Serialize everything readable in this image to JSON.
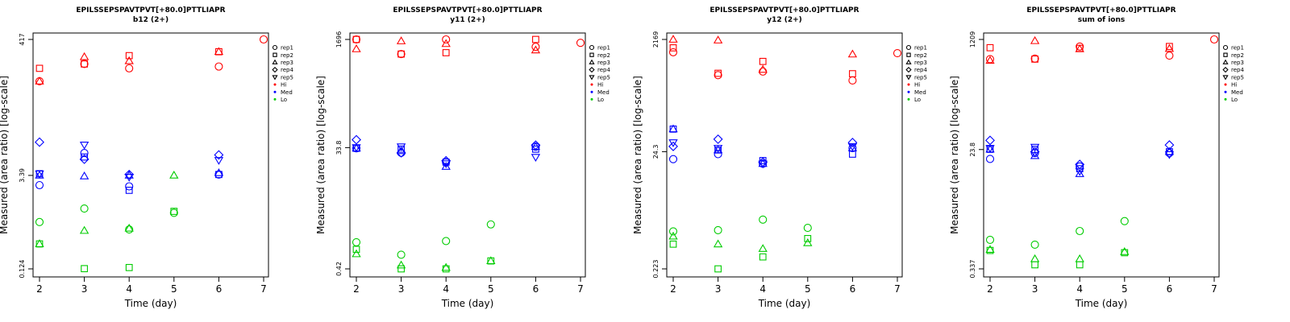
{
  "chart_data": [
    {
      "type": "scatter",
      "title": "EPILSSEPSPAVTPVT[+80.0]PTTLIAPR",
      "subtitle": "b12 (2+)",
      "xlabel": "Time (day)",
      "ylabel": "Measured (area ratio) [log-scale]",
      "ylog": true,
      "xlim": [
        2,
        7
      ],
      "ylim": [
        0.124,
        417
      ],
      "xticks": [
        "2",
        "3",
        "4",
        "5",
        "6",
        "7"
      ],
      "yticks": [
        {
          "value": 0.124,
          "label": "0.124"
        },
        {
          "value": 3.39,
          "label": "3.39"
        },
        {
          "value": 417,
          "label": "417"
        }
      ],
      "series": [
        {
          "group": "Hi",
          "rep": "rep1",
          "points": [
            [
              2,
              95
            ],
            [
              3,
              175
            ],
            [
              4,
              150
            ],
            [
              6,
              160
            ],
            [
              7,
              417
            ]
          ]
        },
        {
          "group": "Hi",
          "rep": "rep2",
          "points": [
            [
              2,
              150
            ],
            [
              3,
              175
            ],
            [
              4,
              235
            ],
            [
              6,
              270
            ]
          ]
        },
        {
          "group": "Hi",
          "rep": "rep3",
          "points": [
            [
              2,
              95
            ],
            [
              3,
              225
            ],
            [
              4,
              195
            ],
            [
              6,
              270
            ]
          ]
        },
        {
          "group": "Med",
          "rep": "rep1",
          "points": [
            [
              2,
              2.4
            ],
            [
              3,
              7.5
            ],
            [
              4,
              2.3
            ],
            [
              6,
              3.5
            ]
          ]
        },
        {
          "group": "Med",
          "rep": "rep2",
          "points": [
            [
              2,
              3.6
            ],
            [
              3,
              6.5
            ],
            [
              4,
              2.0
            ],
            [
              6,
              3.5
            ]
          ]
        },
        {
          "group": "Med",
          "rep": "rep3",
          "points": [
            [
              2,
              3.4
            ],
            [
              3,
              3.3
            ],
            [
              4,
              3.4
            ],
            [
              6,
              3.7
            ]
          ]
        },
        {
          "group": "Med",
          "rep": "rep4",
          "points": [
            [
              2,
              11.0
            ],
            [
              3,
              6.0
            ],
            [
              4,
              3.5
            ],
            [
              6,
              7.0
            ]
          ]
        },
        {
          "group": "Med",
          "rep": "rep5",
          "points": [
            [
              2,
              3.6
            ],
            [
              3,
              10.0
            ],
            [
              4,
              3.2
            ],
            [
              6,
              5.8
            ]
          ]
        },
        {
          "group": "Lo",
          "rep": "rep1",
          "points": [
            [
              2,
              0.65
            ],
            [
              3,
              1.05
            ],
            [
              4,
              0.5
            ],
            [
              5,
              0.9
            ]
          ]
        },
        {
          "group": "Lo",
          "rep": "rep2",
          "points": [
            [
              2,
              0.3
            ],
            [
              3,
              0.125
            ],
            [
              4,
              0.13
            ],
            [
              5,
              0.95
            ]
          ]
        },
        {
          "group": "Lo",
          "rep": "rep3",
          "points": [
            [
              2,
              0.3
            ],
            [
              3,
              0.48
            ],
            [
              4,
              0.52
            ],
            [
              5,
              3.4
            ]
          ]
        }
      ]
    },
    {
      "type": "scatter",
      "title": "EPILSSEPSPAVTPVT[+80.0]PTTLIAPR",
      "subtitle": "y11 (2+)",
      "xlabel": "Time (day)",
      "ylabel": "Measured (area ratio) [log-scale]",
      "ylog": true,
      "xlim": [
        2,
        7
      ],
      "ylim": [
        0.42,
        1696
      ],
      "xticks": [
        "2",
        "3",
        "4",
        "5",
        "6",
        "7"
      ],
      "yticks": [
        {
          "value": 0.42,
          "label": "0.42"
        },
        {
          "value": 33.8,
          "label": "33.8"
        },
        {
          "value": 1696,
          "label": "1696"
        }
      ],
      "series": [
        {
          "group": "Hi",
          "rep": "rep1",
          "points": [
            [
              2,
              1696
            ],
            [
              3,
              1000
            ],
            [
              4,
              1696
            ],
            [
              6,
              1300
            ],
            [
              7,
              1500
            ]
          ]
        },
        {
          "group": "Hi",
          "rep": "rep2",
          "points": [
            [
              2,
              1696
            ],
            [
              3,
              1000
            ],
            [
              4,
              1050
            ],
            [
              6,
              1696
            ]
          ]
        },
        {
          "group": "Hi",
          "rep": "rep3",
          "points": [
            [
              2,
              1200
            ],
            [
              3,
              1600
            ],
            [
              4,
              1450
            ],
            [
              6,
              1150
            ]
          ]
        },
        {
          "group": "Med",
          "rep": "rep1",
          "points": [
            [
              2,
              33.0
            ],
            [
              3,
              28.0
            ],
            [
              4,
              20.0
            ],
            [
              6,
              35.0
            ]
          ]
        },
        {
          "group": "Med",
          "rep": "rep2",
          "points": [
            [
              2,
              33.0
            ],
            [
              3,
              32.0
            ],
            [
              4,
              20.0
            ],
            [
              6,
              32.0
            ]
          ]
        },
        {
          "group": "Med",
          "rep": "rep3",
          "points": [
            [
              2,
              33.0
            ],
            [
              3,
              30.0
            ],
            [
              4,
              17.0
            ],
            [
              6,
              35.0
            ]
          ]
        },
        {
          "group": "Med",
          "rep": "rep4",
          "points": [
            [
              2,
              45.0
            ],
            [
              3,
              28.0
            ],
            [
              4,
              21.0
            ],
            [
              6,
              37.0
            ]
          ]
        },
        {
          "group": "Med",
          "rep": "rep5",
          "points": [
            [
              2,
              34.0
            ],
            [
              3,
              35.0
            ],
            [
              4,
              19.0
            ],
            [
              6,
              24.0
            ]
          ]
        },
        {
          "group": "Lo",
          "rep": "rep1",
          "points": [
            [
              2,
              1.1
            ],
            [
              3,
              0.7
            ],
            [
              4,
              1.15
            ],
            [
              5,
              2.1
            ]
          ]
        },
        {
          "group": "Lo",
          "rep": "rep2",
          "points": [
            [
              2,
              0.85
            ],
            [
              3,
              0.42
            ],
            [
              4,
              0.42
            ],
            [
              5,
              0.56
            ]
          ]
        },
        {
          "group": "Lo",
          "rep": "rep3",
          "points": [
            [
              2,
              0.72
            ],
            [
              3,
              0.48
            ],
            [
              4,
              0.44
            ],
            [
              5,
              0.56
            ]
          ]
        }
      ]
    },
    {
      "type": "scatter",
      "title": "EPILSSEPSPAVTPVT[+80.0]PTTLIAPR",
      "subtitle": "y12 (2+)",
      "xlabel": "Time (day)",
      "ylabel": "Measured (area ratio) [log-scale]",
      "ylog": true,
      "xlim": [
        2,
        7
      ],
      "ylim": [
        0.223,
        2169
      ],
      "xticks": [
        "2",
        "3",
        "4",
        "5",
        "6",
        "7"
      ],
      "yticks": [
        {
          "value": 0.223,
          "label": "0.223"
        },
        {
          "value": 24.3,
          "label": "24.3"
        },
        {
          "value": 2169,
          "label": "2169"
        }
      ],
      "series": [
        {
          "group": "Hi",
          "rep": "rep1",
          "points": [
            [
              2,
              1300
            ],
            [
              3,
              520
            ],
            [
              4,
              600
            ],
            [
              6,
              420
            ],
            [
              7,
              1250
            ]
          ]
        },
        {
          "group": "Hi",
          "rep": "rep2",
          "points": [
            [
              2,
              1550
            ],
            [
              3,
              560
            ],
            [
              4,
              900
            ],
            [
              6,
              550
            ]
          ]
        },
        {
          "group": "Hi",
          "rep": "rep3",
          "points": [
            [
              2,
              2169
            ],
            [
              3,
              2100
            ],
            [
              4,
              650
            ],
            [
              6,
              1200
            ]
          ]
        },
        {
          "group": "Med",
          "rep": "rep1",
          "points": [
            [
              2,
              18.0
            ],
            [
              3,
              22.0
            ],
            [
              4,
              15.0
            ],
            [
              6,
              28.0
            ]
          ]
        },
        {
          "group": "Med",
          "rep": "rep2",
          "points": [
            [
              2,
              60.0
            ],
            [
              3,
              26.0
            ],
            [
              4,
              17.0
            ],
            [
              6,
              22.0
            ]
          ]
        },
        {
          "group": "Med",
          "rep": "rep3",
          "points": [
            [
              2,
              60.0
            ],
            [
              3,
              26.0
            ],
            [
              4,
              15.0
            ],
            [
              6,
              28.0
            ]
          ]
        },
        {
          "group": "Med",
          "rep": "rep4",
          "points": [
            [
              2,
              30.0
            ],
            [
              3,
              40.0
            ],
            [
              4,
              16.0
            ],
            [
              6,
              35.0
            ]
          ]
        },
        {
          "group": "Med",
          "rep": "rep5",
          "points": [
            [
              2,
              35.0
            ],
            [
              3,
              28.0
            ],
            [
              4,
              15.0
            ],
            [
              6,
              30.0
            ]
          ]
        },
        {
          "group": "Lo",
          "rep": "rep1",
          "points": [
            [
              2,
              1.0
            ],
            [
              3,
              1.05
            ],
            [
              4,
              1.6
            ],
            [
              5,
              1.15
            ]
          ]
        },
        {
          "group": "Lo",
          "rep": "rep2",
          "points": [
            [
              2,
              0.6
            ],
            [
              3,
              0.223
            ],
            [
              4,
              0.36
            ],
            [
              5,
              0.75
            ]
          ]
        },
        {
          "group": "Lo",
          "rep": "rep3",
          "points": [
            [
              2,
              0.82
            ],
            [
              3,
              0.6
            ],
            [
              4,
              0.5
            ],
            [
              5,
              0.63
            ]
          ]
        }
      ]
    },
    {
      "type": "scatter",
      "title": "EPILSSEPSPAVTPVT[+80.0]PTTLIAPR",
      "subtitle": "sum of ions",
      "xlabel": "Time (day)",
      "ylabel": "Measured (area ratio) [log-scale]",
      "ylog": true,
      "xlim": [
        2,
        7
      ],
      "ylim": [
        0.337,
        1209
      ],
      "xticks": [
        "2",
        "3",
        "4",
        "5",
        "6",
        "7"
      ],
      "yticks": [
        {
          "value": 0.337,
          "label": "0.337"
        },
        {
          "value": 23.8,
          "label": "23.8"
        },
        {
          "value": 1209,
          "label": "1209"
        }
      ],
      "series": [
        {
          "group": "Hi",
          "rep": "rep1",
          "points": [
            [
              2,
              600
            ],
            [
              3,
              610
            ],
            [
              4,
              940
            ],
            [
              6,
              680
            ],
            [
              7,
              1209
            ]
          ]
        },
        {
          "group": "Hi",
          "rep": "rep2",
          "points": [
            [
              2,
              900
            ],
            [
              3,
              600
            ],
            [
              4,
              880
            ],
            [
              6,
              940
            ]
          ]
        },
        {
          "group": "Hi",
          "rep": "rep3",
          "points": [
            [
              2,
              570
            ],
            [
              3,
              1150
            ],
            [
              4,
              860
            ],
            [
              6,
              870
            ]
          ]
        },
        {
          "group": "Med",
          "rep": "rep1",
          "points": [
            [
              2,
              17.0
            ],
            [
              3,
              21.0
            ],
            [
              4,
              13.0
            ],
            [
              6,
              21.0
            ]
          ]
        },
        {
          "group": "Med",
          "rep": "rep2",
          "points": [
            [
              2,
              24.0
            ],
            [
              3,
              24.0
            ],
            [
              4,
              12.0
            ],
            [
              6,
              22.0
            ]
          ]
        },
        {
          "group": "Med",
          "rep": "rep3",
          "points": [
            [
              2,
              24.0
            ],
            [
              3,
              19.0
            ],
            [
              4,
              10.0
            ],
            [
              6,
              22.0
            ]
          ]
        },
        {
          "group": "Med",
          "rep": "rep4",
          "points": [
            [
              2,
              33.0
            ],
            [
              3,
              22.0
            ],
            [
              4,
              14.0
            ],
            [
              6,
              28.0
            ]
          ]
        },
        {
          "group": "Med",
          "rep": "rep5",
          "points": [
            [
              2,
              25.0
            ],
            [
              3,
              26.0
            ],
            [
              4,
              11.0
            ],
            [
              6,
              20.0
            ]
          ]
        },
        {
          "group": "Lo",
          "rep": "rep1",
          "points": [
            [
              2,
              0.95
            ],
            [
              3,
              0.8
            ],
            [
              4,
              1.3
            ],
            [
              5,
              1.85
            ]
          ]
        },
        {
          "group": "Lo",
          "rep": "rep2",
          "points": [
            [
              2,
              0.65
            ],
            [
              3,
              0.39
            ],
            [
              4,
              0.39
            ],
            [
              5,
              0.6
            ]
          ]
        },
        {
          "group": "Lo",
          "rep": "rep3",
          "points": [
            [
              2,
              0.67
            ],
            [
              3,
              0.48
            ],
            [
              4,
              0.48
            ],
            [
              5,
              0.62
            ]
          ]
        }
      ]
    }
  ],
  "legend": {
    "placement": "top-right",
    "entries": [
      {
        "label": "rep1",
        "symbol": "circle",
        "color": "#000000"
      },
      {
        "label": "rep2",
        "symbol": "square",
        "color": "#000000"
      },
      {
        "label": "rep3",
        "symbol": "triangle-up",
        "color": "#000000"
      },
      {
        "label": "rep4",
        "symbol": "diamond",
        "color": "#000000"
      },
      {
        "label": "rep5",
        "symbol": "triangle-down",
        "color": "#000000"
      },
      {
        "label": "Hi",
        "symbol": "dot",
        "color": "#ff0000"
      },
      {
        "label": "Med",
        "symbol": "dot",
        "color": "#0000ff"
      },
      {
        "label": "Lo",
        "symbol": "dot",
        "color": "#00cc00"
      }
    ]
  },
  "colors": {
    "Hi": "#ff0000",
    "Med": "#0000ff",
    "Lo": "#00cc00"
  }
}
